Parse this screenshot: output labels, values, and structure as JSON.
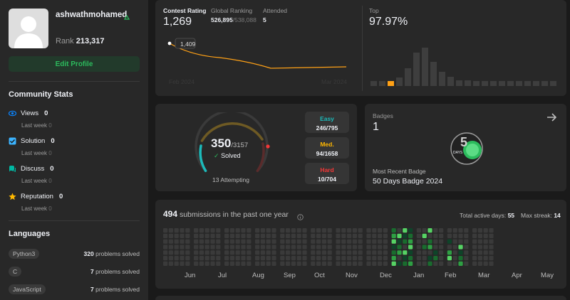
{
  "profile": {
    "username": "ashwathmohamed",
    "rank_label": "Rank",
    "rank_value": "213,317",
    "edit_label": "Edit Profile"
  },
  "community": {
    "title": "Community Stats",
    "items": [
      {
        "label": "Views",
        "value": "0",
        "last_week_label": "Last week",
        "last_week_value": "0",
        "icon": "eye-icon",
        "color": "#0a84ff"
      },
      {
        "label": "Solution",
        "value": "0",
        "last_week_label": "Last week",
        "last_week_value": "0",
        "icon": "check-square-icon",
        "color": "#3cb4ff"
      },
      {
        "label": "Discuss",
        "value": "0",
        "last_week_label": "Last week",
        "last_week_value": "0",
        "icon": "discuss-icon",
        "color": "#00b8a3"
      },
      {
        "label": "Reputation",
        "value": "0",
        "last_week_label": "Last week",
        "last_week_value": "0",
        "icon": "star-icon",
        "color": "#ffb800"
      }
    ]
  },
  "languages": {
    "title": "Languages",
    "items": [
      {
        "name": "Python3",
        "count": "320",
        "suffix": "problems solved"
      },
      {
        "name": "C",
        "count": "7",
        "suffix": "problems solved"
      },
      {
        "name": "JavaScript",
        "count": "7",
        "suffix": "problems solved"
      }
    ]
  },
  "contest": {
    "rating_label": "Contest Rating",
    "rating_value": "1,269",
    "global_label": "Global Ranking",
    "global_value": "526,895",
    "global_total": "/538,088",
    "attended_label": "Attended",
    "attended_value": "5",
    "tooltip": "1,409",
    "start_label": "Feb 2024",
    "end_label": "Mar 2024",
    "top_label": "Top",
    "top_value": "97.97%"
  },
  "solved": {
    "count": "350",
    "total": "/3157",
    "solved_label": "Solved",
    "attempting": "13 Attempting",
    "easy": {
      "label": "Easy",
      "value": "246/795",
      "color": "#1cbaba"
    },
    "medium": {
      "label": "Med.",
      "value": "94/1658",
      "color": "#ffb700"
    },
    "hard": {
      "label": "Hard",
      "value": "10/704",
      "color": "#f63737"
    }
  },
  "badges": {
    "title": "Badges",
    "count": "1",
    "recent_label": "Most Recent Badge",
    "recent_name": "50 Days Badge 2024",
    "badge_text": "DAYS"
  },
  "submissions": {
    "count": "494",
    "text": "submissions in the past one year",
    "active_label": "Total active days:",
    "active_value": "55",
    "streak_label": "Max streak:",
    "streak_value": "14",
    "months": [
      "Jun",
      "Jul",
      "Aug",
      "Sep",
      "Oct",
      "Nov",
      "Dec",
      "Jan",
      "Feb",
      "Mar",
      "Apr",
      "May"
    ]
  },
  "colors": {
    "accent_green": "#2cbb5d",
    "rating_line": "#ffa116",
    "bg": "#1a1a1a",
    "card": "#282828"
  }
}
